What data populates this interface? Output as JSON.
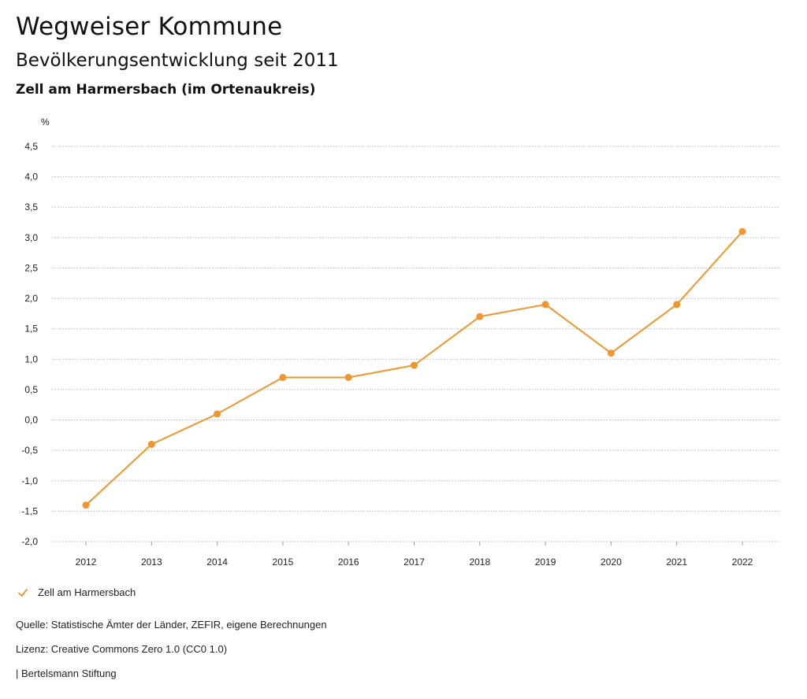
{
  "header": {
    "title": "Wegweiser Kommune",
    "subtitle": "Bevölkerungsentwicklung seit 2011"
  },
  "chart_data": {
    "type": "line",
    "title": "Zell am Harmersbach (im Ortenaukreis)",
    "xlabel": "",
    "ylabel": "%",
    "categories": [
      "2012",
      "2013",
      "2014",
      "2015",
      "2016",
      "2017",
      "2018",
      "2019",
      "2020",
      "2021",
      "2022"
    ],
    "series": [
      {
        "name": "Zell am Harmersbach",
        "values": [
          -1.4,
          -0.4,
          0.1,
          0.7,
          0.7,
          0.9,
          1.7,
          1.9,
          1.1,
          1.9,
          3.1
        ]
      }
    ],
    "ylim": [
      -2.0,
      4.5
    ],
    "yticks": [
      -2.0,
      -1.5,
      -1.0,
      -0.5,
      0.0,
      0.5,
      1.0,
      1.5,
      2.0,
      2.5,
      3.0,
      3.5,
      4.0,
      4.5
    ],
    "ytick_labels": [
      "-2,0",
      "-1,5",
      "-1,0",
      "-0,5",
      "0,0",
      "0,5",
      "1,0",
      "1,5",
      "2,0",
      "2,5",
      "3,0",
      "3,5",
      "4,0",
      "4,5"
    ],
    "grid": true,
    "legend": "bottom-left",
    "color": "#f0962d"
  },
  "footer": {
    "source": "Quelle: Statistische Ämter der Länder, ZEFIR, eigene Berechnungen",
    "license": "Lizenz: Creative Commons Zero 1.0 (CC0 1.0)",
    "publisher": "| Bertelsmann Stiftung"
  }
}
